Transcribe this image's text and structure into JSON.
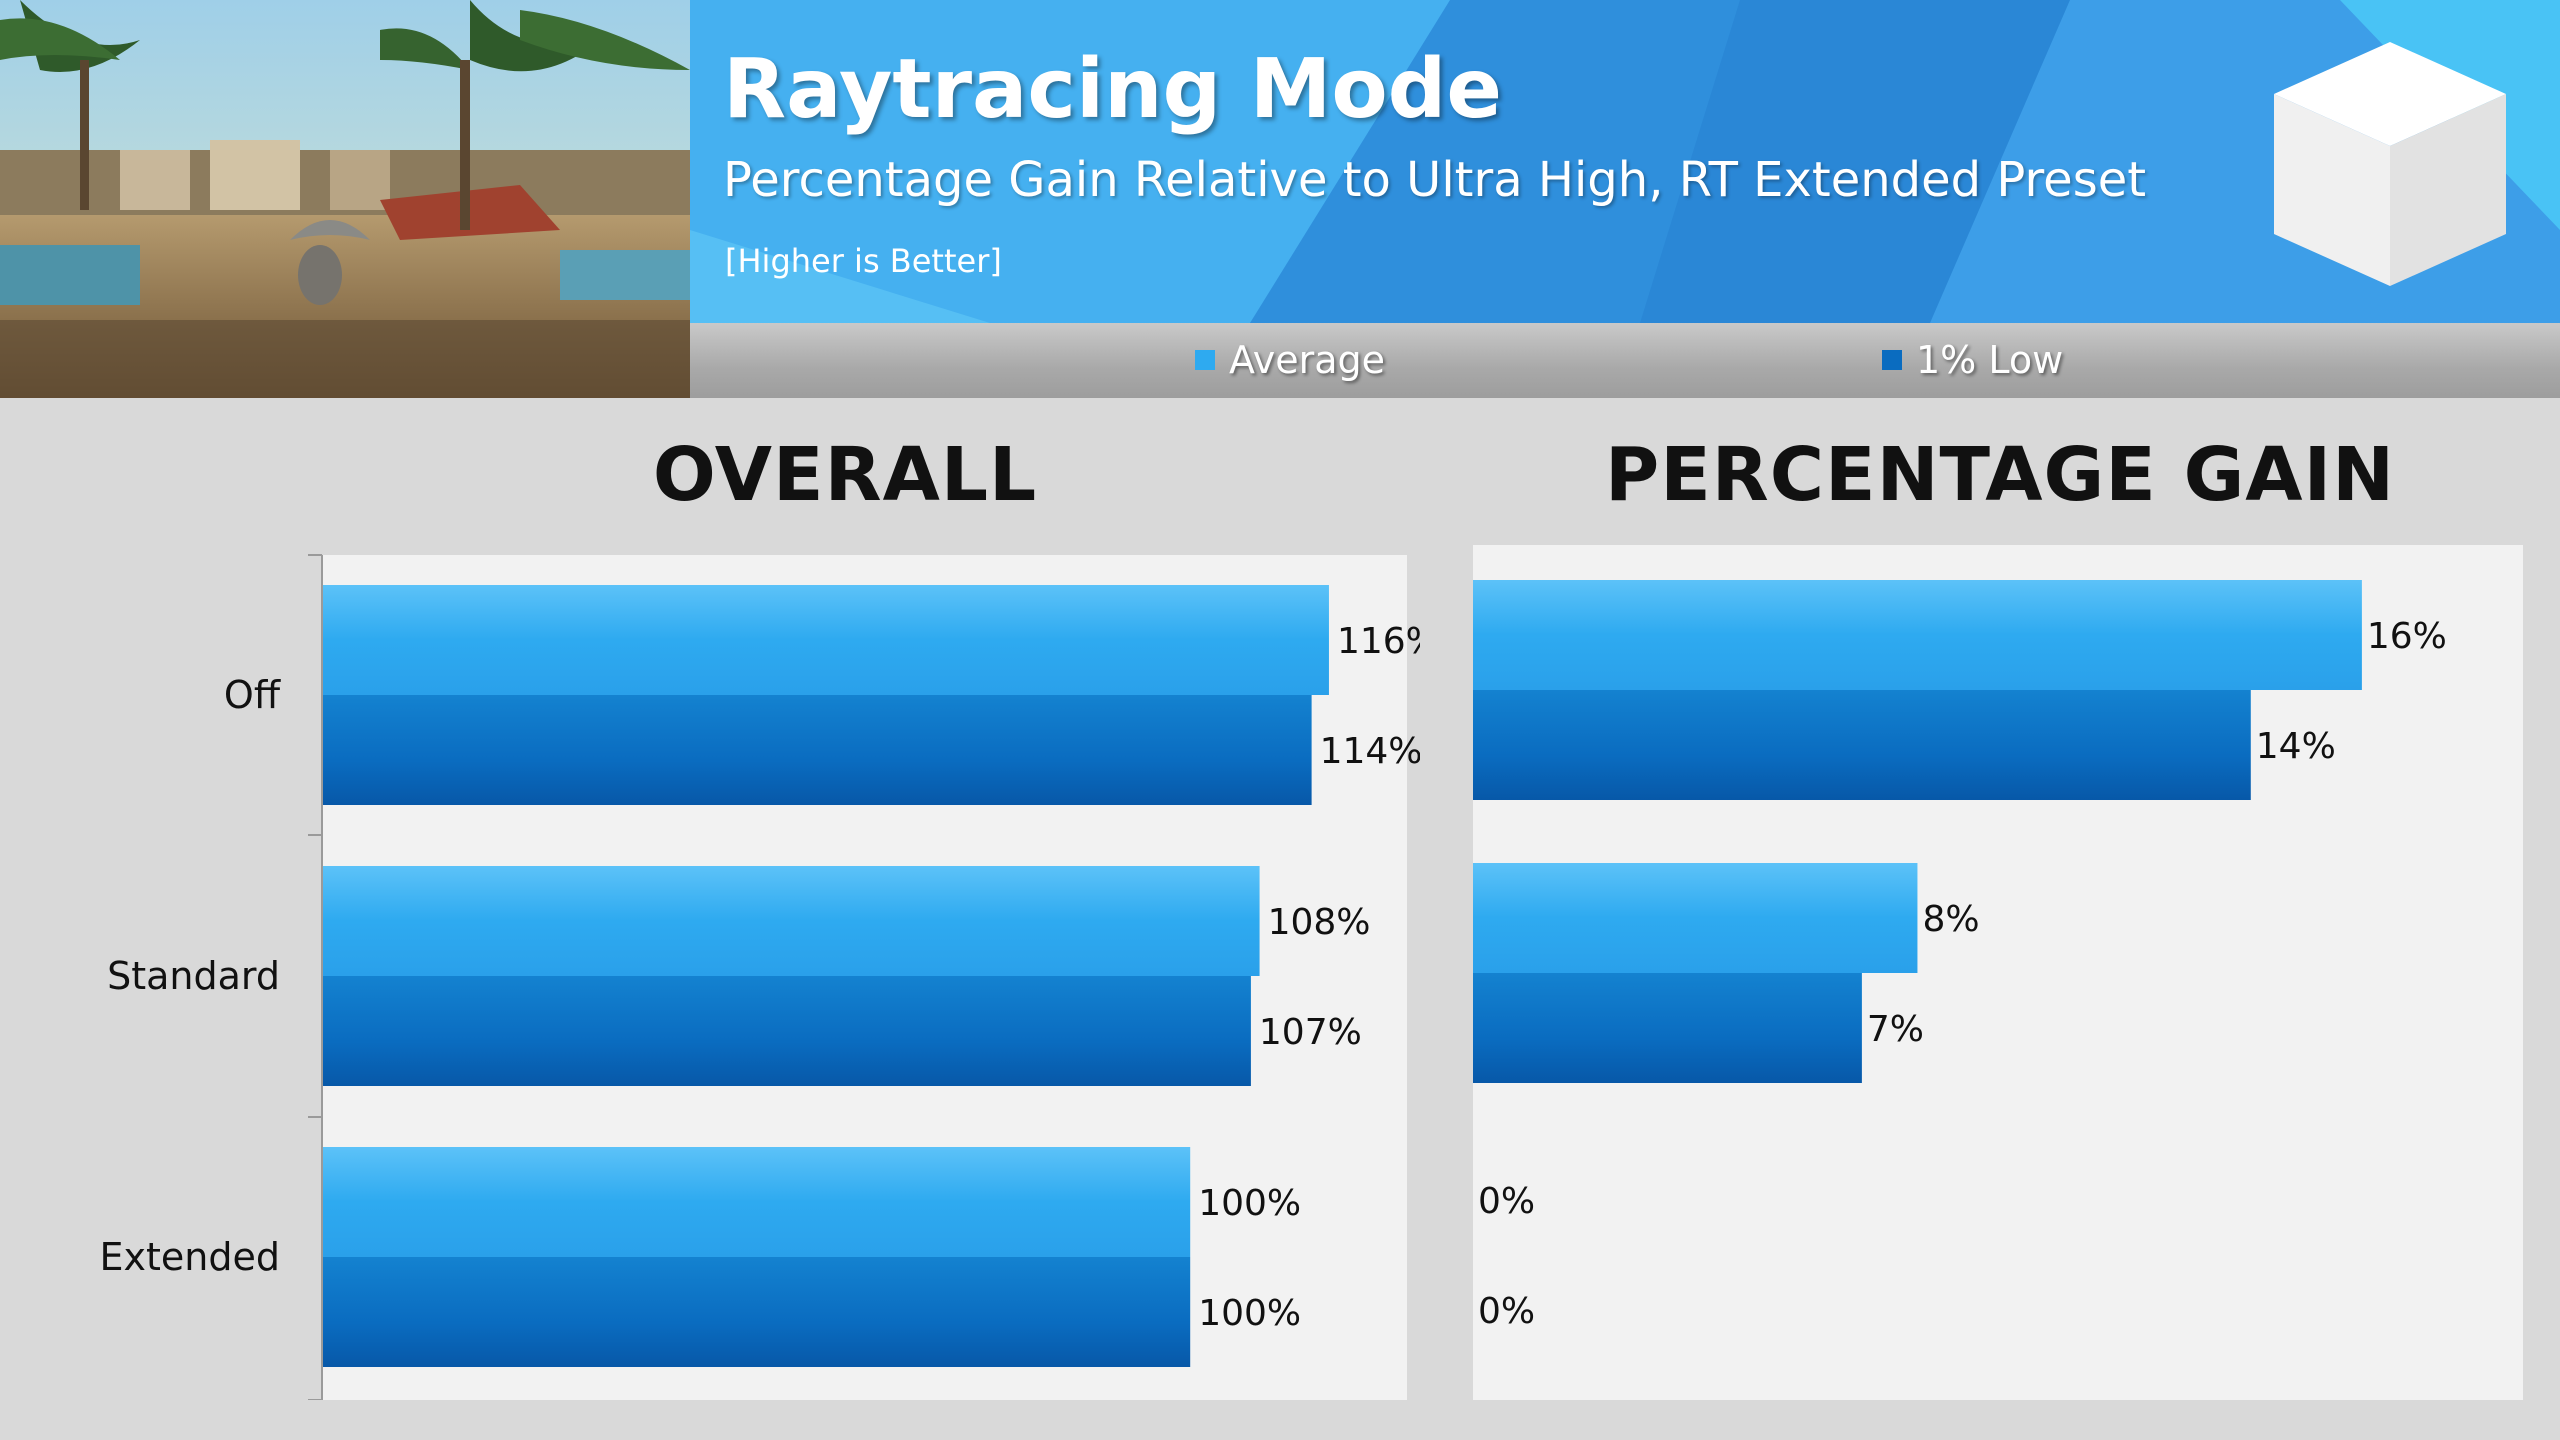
{
  "header": {
    "title": "Raytracing Mode",
    "subtitle": "Percentage Gain Relative to Ultra High, RT Extended Preset",
    "note": "[Higher is Better]"
  },
  "legend": [
    {
      "label": "Average",
      "color": "#2eaaf0"
    },
    {
      "label": "1% Low",
      "color": "#0a6cc0"
    }
  ],
  "colors": {
    "average": "#2eaaf0",
    "low": "#0a6cc0",
    "banner": "#3aa3ea",
    "background": "#d9d9d9",
    "plot_background": "#f2f2f2"
  },
  "chart_data": [
    {
      "type": "bar",
      "orientation": "horizontal",
      "title": "OVERALL",
      "categories": [
        "Off",
        "Standard",
        "Extended"
      ],
      "series": [
        {
          "name": "Average",
          "values": [
            116,
            108,
            100
          ],
          "labels": [
            "116%",
            "108%",
            "100%"
          ]
        },
        {
          "name": "1% Low",
          "values": [
            114,
            107,
            100
          ],
          "labels": [
            "114%",
            "107%",
            "100%"
          ]
        }
      ],
      "xlim": [
        0,
        125
      ]
    },
    {
      "type": "bar",
      "orientation": "horizontal",
      "title": "PERCENTAGE GAIN",
      "categories": [
        "Off",
        "Standard",
        "Extended"
      ],
      "series": [
        {
          "name": "Average",
          "values": [
            16,
            8,
            0
          ],
          "labels": [
            "16%",
            "8%",
            "0%"
          ]
        },
        {
          "name": "1% Low",
          "values": [
            14,
            7,
            0
          ],
          "labels": [
            "14%",
            "7%",
            "0%"
          ]
        }
      ],
      "xlim": [
        0,
        18.9
      ]
    }
  ]
}
